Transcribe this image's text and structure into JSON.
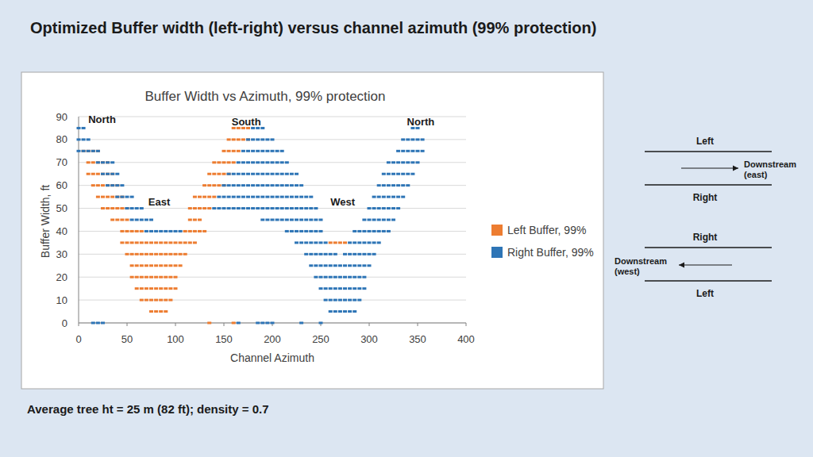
{
  "slide": {
    "title": "Optimized Buffer width (left-right) versus channel azimuth (99% protection)",
    "footnote": "Average tree ht = 25 m (82 ft); density = 0.7"
  },
  "chart_data": {
    "type": "scatter",
    "title": "Buffer Width vs Azimuth, 99% protection",
    "x_label": "Channel Azimuth",
    "y_label": "Buffer Width, ft",
    "xlim": [
      0,
      400
    ],
    "xticks": [
      0,
      50,
      100,
      150,
      200,
      250,
      300,
      350,
      400
    ],
    "ylim": [
      0,
      90
    ],
    "yticks": [
      0,
      10,
      20,
      30,
      40,
      50,
      60,
      70,
      80,
      90
    ],
    "grid": true,
    "legend": "right",
    "marker": "dash",
    "annotations": [
      {
        "text": "North",
        "x": 10,
        "y": 89
      },
      {
        "text": "East",
        "x": 72,
        "y": 53
      },
      {
        "text": "South",
        "x": 158,
        "y": 88
      },
      {
        "text": "West",
        "x": 260,
        "y": 53
      },
      {
        "text": "North",
        "x": 339,
        "y": 88
      }
    ],
    "series": [
      {
        "name": "Left Buffer, 99%",
        "color": "#ed7d31",
        "x": [
          75,
          80,
          85,
          90,
          65,
          70,
          75,
          80,
          85,
          90,
          95,
          60,
          65,
          70,
          75,
          80,
          85,
          90,
          95,
          100,
          55,
          60,
          65,
          70,
          75,
          80,
          85,
          90,
          95,
          100,
          55,
          60,
          65,
          70,
          75,
          80,
          85,
          90,
          95,
          100,
          105,
          50,
          55,
          60,
          65,
          70,
          75,
          80,
          85,
          90,
          95,
          100,
          105,
          110,
          45,
          50,
          55,
          60,
          65,
          70,
          75,
          80,
          85,
          90,
          95,
          100,
          105,
          110,
          115,
          120,
          260,
          265,
          270,
          275,
          45,
          50,
          55,
          60,
          65,
          110,
          115,
          120,
          125,
          130,
          35,
          40,
          45,
          50,
          115,
          120,
          125,
          25,
          30,
          35,
          40,
          45,
          50,
          115,
          120,
          125,
          130,
          135,
          20,
          25,
          30,
          35,
          40,
          45,
          120,
          125,
          130,
          135,
          140,
          15,
          20,
          25,
          30,
          35,
          40,
          130,
          135,
          140,
          145,
          150,
          10,
          15,
          20,
          25,
          30,
          35,
          135,
          140,
          145,
          150,
          155,
          10,
          15,
          20,
          25,
          30,
          140,
          145,
          150,
          155,
          160,
          5,
          10,
          15,
          20,
          150,
          155,
          160,
          165,
          155,
          160,
          165,
          170,
          175,
          160,
          165,
          170,
          175,
          135,
          160
        ],
        "values": [
          5,
          5,
          5,
          5,
          10,
          10,
          10,
          10,
          10,
          10,
          10,
          15,
          15,
          15,
          15,
          15,
          15,
          15,
          15,
          15,
          20,
          20,
          20,
          20,
          20,
          20,
          20,
          20,
          20,
          20,
          25,
          25,
          25,
          25,
          25,
          25,
          25,
          25,
          25,
          25,
          25,
          30,
          30,
          30,
          30,
          30,
          30,
          30,
          30,
          30,
          30,
          30,
          30,
          30,
          35,
          35,
          35,
          35,
          35,
          35,
          35,
          35,
          35,
          35,
          35,
          35,
          35,
          35,
          35,
          35,
          35,
          35,
          35,
          35,
          40,
          40,
          40,
          40,
          40,
          40,
          40,
          40,
          40,
          40,
          45,
          45,
          45,
          45,
          45,
          45,
          45,
          50,
          50,
          50,
          50,
          50,
          50,
          50,
          50,
          50,
          50,
          50,
          55,
          55,
          55,
          55,
          55,
          55,
          55,
          55,
          55,
          55,
          55,
          60,
          60,
          60,
          60,
          60,
          60,
          60,
          60,
          60,
          60,
          60,
          65,
          65,
          65,
          65,
          65,
          65,
          65,
          65,
          65,
          65,
          65,
          70,
          70,
          70,
          70,
          70,
          70,
          70,
          70,
          70,
          70,
          75,
          75,
          75,
          75,
          75,
          75,
          75,
          75,
          80,
          80,
          80,
          80,
          80,
          85,
          85,
          85,
          85,
          0,
          0
        ]
      },
      {
        "name": "Right Buffer, 99%",
        "color": "#2e75b6",
        "x": [
          0,
          5,
          180,
          185,
          190,
          345,
          350,
          0,
          5,
          10,
          175,
          180,
          185,
          190,
          195,
          200,
          335,
          340,
          345,
          350,
          355,
          0,
          5,
          10,
          15,
          20,
          170,
          175,
          180,
          185,
          190,
          195,
          200,
          205,
          210,
          330,
          335,
          340,
          345,
          350,
          355,
          20,
          25,
          30,
          35,
          165,
          170,
          175,
          180,
          185,
          190,
          195,
          200,
          205,
          210,
          215,
          320,
          325,
          330,
          335,
          340,
          345,
          350,
          25,
          30,
          35,
          40,
          155,
          160,
          165,
          170,
          175,
          180,
          185,
          190,
          195,
          200,
          205,
          210,
          215,
          220,
          225,
          315,
          320,
          325,
          330,
          335,
          340,
          345,
          30,
          35,
          40,
          45,
          150,
          155,
          160,
          165,
          170,
          175,
          180,
          185,
          190,
          195,
          200,
          205,
          210,
          215,
          220,
          225,
          230,
          310,
          315,
          320,
          325,
          330,
          335,
          340,
          40,
          45,
          50,
          55,
          145,
          150,
          155,
          160,
          165,
          170,
          175,
          180,
          185,
          190,
          195,
          200,
          205,
          210,
          215,
          220,
          225,
          230,
          235,
          240,
          305,
          310,
          315,
          320,
          325,
          330,
          335,
          50,
          55,
          60,
          65,
          140,
          145,
          150,
          155,
          160,
          165,
          170,
          175,
          180,
          185,
          190,
          195,
          200,
          205,
          210,
          215,
          220,
          225,
          230,
          235,
          240,
          245,
          300,
          305,
          310,
          315,
          320,
          325,
          330,
          55,
          60,
          65,
          70,
          75,
          190,
          195,
          200,
          205,
          210,
          215,
          220,
          225,
          230,
          235,
          240,
          245,
          250,
          295,
          300,
          305,
          310,
          315,
          320,
          325,
          70,
          75,
          80,
          85,
          90,
          95,
          100,
          105,
          215,
          220,
          225,
          230,
          235,
          240,
          245,
          250,
          285,
          290,
          295,
          300,
          305,
          310,
          315,
          320,
          225,
          230,
          235,
          240,
          245,
          250,
          255,
          280,
          285,
          290,
          295,
          300,
          305,
          310,
          235,
          240,
          245,
          250,
          255,
          260,
          265,
          275,
          280,
          285,
          290,
          295,
          300,
          305,
          240,
          245,
          250,
          255,
          260,
          265,
          270,
          275,
          280,
          285,
          290,
          295,
          300,
          245,
          250,
          255,
          260,
          265,
          270,
          275,
          280,
          285,
          290,
          295,
          250,
          255,
          260,
          265,
          270,
          275,
          280,
          285,
          290,
          295,
          255,
          260,
          265,
          270,
          275,
          280,
          285,
          290,
          260,
          265,
          270,
          275,
          280,
          285,
          15,
          20,
          25,
          165,
          185,
          190,
          195,
          200,
          230,
          250
        ],
        "values": [
          85,
          85,
          85,
          85,
          85,
          85,
          85,
          80,
          80,
          80,
          80,
          80,
          80,
          80,
          80,
          80,
          80,
          80,
          80,
          80,
          80,
          75,
          75,
          75,
          75,
          75,
          75,
          75,
          75,
          75,
          75,
          75,
          75,
          75,
          75,
          75,
          75,
          75,
          75,
          75,
          75,
          70,
          70,
          70,
          70,
          70,
          70,
          70,
          70,
          70,
          70,
          70,
          70,
          70,
          70,
          70,
          70,
          70,
          70,
          70,
          70,
          70,
          70,
          65,
          65,
          65,
          65,
          65,
          65,
          65,
          65,
          65,
          65,
          65,
          65,
          65,
          65,
          65,
          65,
          65,
          65,
          65,
          65,
          65,
          65,
          65,
          65,
          65,
          65,
          60,
          60,
          60,
          60,
          60,
          60,
          60,
          60,
          60,
          60,
          60,
          60,
          60,
          60,
          60,
          60,
          60,
          60,
          60,
          60,
          60,
          60,
          60,
          60,
          60,
          60,
          60,
          60,
          55,
          55,
          55,
          55,
          55,
          55,
          55,
          55,
          55,
          55,
          55,
          55,
          55,
          55,
          55,
          55,
          55,
          55,
          55,
          55,
          55,
          55,
          55,
          55,
          55,
          55,
          55,
          55,
          55,
          55,
          55,
          50,
          50,
          50,
          50,
          50,
          50,
          50,
          50,
          50,
          50,
          50,
          50,
          50,
          50,
          50,
          50,
          50,
          50,
          50,
          50,
          50,
          50,
          50,
          50,
          50,
          50,
          50,
          50,
          50,
          50,
          50,
          50,
          50,
          45,
          45,
          45,
          45,
          45,
          45,
          45,
          45,
          45,
          45,
          45,
          45,
          45,
          45,
          45,
          45,
          45,
          45,
          45,
          45,
          45,
          45,
          45,
          45,
          45,
          40,
          40,
          40,
          40,
          40,
          40,
          40,
          40,
          40,
          40,
          40,
          40,
          40,
          40,
          40,
          40,
          40,
          40,
          40,
          40,
          40,
          40,
          40,
          40,
          35,
          35,
          35,
          35,
          35,
          35,
          35,
          35,
          35,
          35,
          35,
          35,
          35,
          35,
          30,
          30,
          30,
          30,
          30,
          30,
          30,
          30,
          30,
          30,
          30,
          30,
          30,
          30,
          25,
          25,
          25,
          25,
          25,
          25,
          25,
          25,
          25,
          25,
          25,
          25,
          25,
          20,
          20,
          20,
          20,
          20,
          20,
          20,
          20,
          20,
          20,
          20,
          15,
          15,
          15,
          15,
          15,
          15,
          15,
          15,
          15,
          15,
          10,
          10,
          10,
          10,
          10,
          10,
          10,
          10,
          5,
          5,
          5,
          5,
          5,
          5,
          0,
          0,
          0,
          0,
          0,
          0,
          0,
          0,
          0,
          0
        ]
      }
    ]
  },
  "diagram": {
    "panels": [
      {
        "top": "Left",
        "arrow_label": [
          "Downstream",
          "(east)"
        ],
        "bottom": "Right"
      },
      {
        "top": "Right",
        "arrow_label": [
          "Downstream",
          "(west)"
        ],
        "bottom": "Left"
      }
    ]
  }
}
